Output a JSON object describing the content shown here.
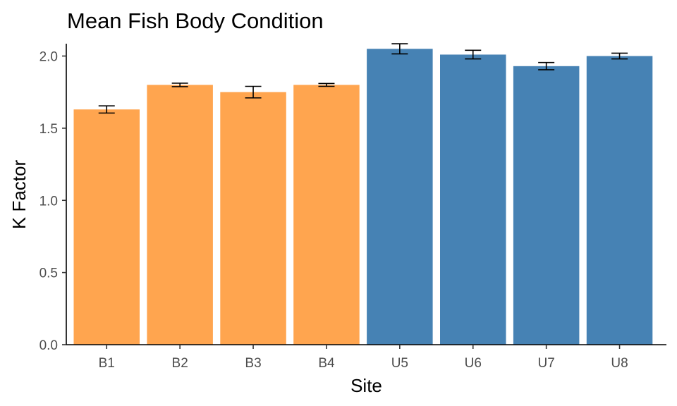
{
  "chart_data": {
    "type": "bar",
    "title": "Mean Fish Body Condition",
    "xlabel": "Site",
    "ylabel": "K Factor",
    "categories": [
      "B1",
      "B2",
      "B3",
      "B4",
      "U5",
      "U6",
      "U7",
      "U8"
    ],
    "values": [
      1.63,
      1.8,
      1.75,
      1.8,
      2.05,
      2.01,
      1.93,
      2.0
    ],
    "error": [
      0.025,
      0.012,
      0.04,
      0.01,
      0.035,
      0.03,
      0.025,
      0.02
    ],
    "bar_colors": [
      "#FFA54F",
      "#FFA54F",
      "#FFA54F",
      "#FFA54F",
      "#4682B4",
      "#4682B4",
      "#4682B4",
      "#4682B4"
    ],
    "ylim": [
      0,
      2.1
    ],
    "yticks": [
      0.0,
      0.5,
      1.0,
      1.5,
      2.0
    ],
    "ytick_labels": [
      "0.0",
      "0.5",
      "1.0",
      "1.5",
      "2.0"
    ],
    "grid": false,
    "legend": "none"
  }
}
